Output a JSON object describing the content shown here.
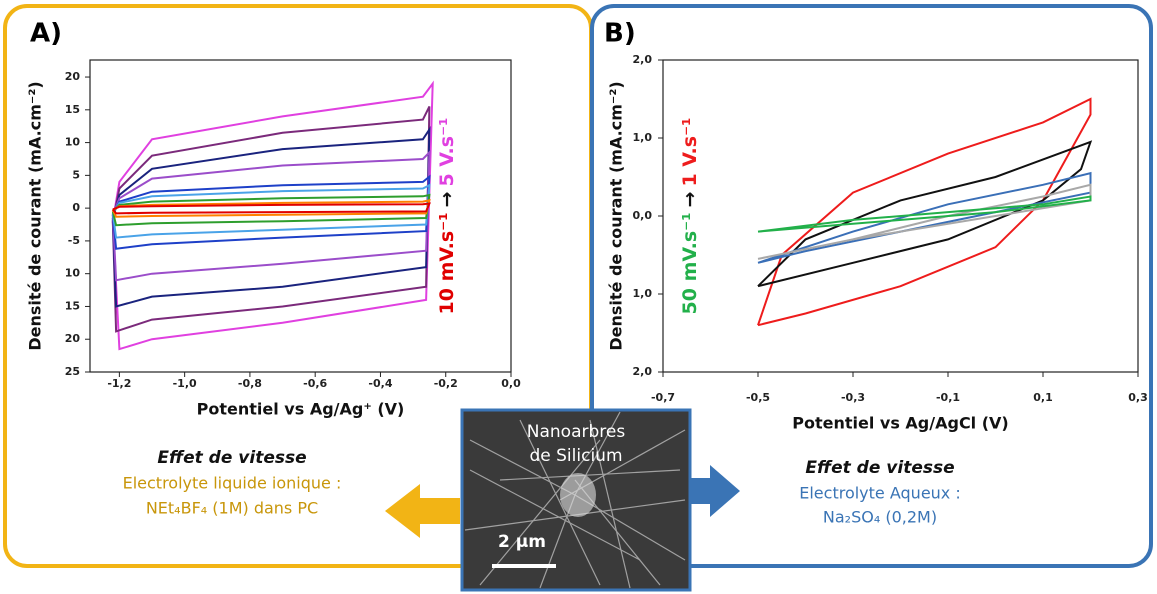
{
  "chart_data": [
    {
      "type": "line",
      "panel": "A)",
      "x_label": "Potentiel vs Ag/Ag⁺ (V)",
      "y_label": "Densité de courant (mA.cm⁻²)",
      "rate_from": "10 mV.s⁻¹",
      "rate_arrow": "→",
      "rate_to": "5 V.s⁻¹",
      "xlim": [
        -1.29,
        0
      ],
      "ylim": [
        -25,
        22.6
      ],
      "xticks": [
        {
          "value": -1.2,
          "label": "-1,2"
        },
        {
          "value": -1.0,
          "label": "-1,0"
        },
        {
          "value": -0.8,
          "label": "-0,8"
        },
        {
          "value": -0.6,
          "label": "-0,6"
        },
        {
          "value": -0.4,
          "label": "-0,4"
        },
        {
          "value": -0.2,
          "label": "-0,2"
        },
        {
          "value": 0,
          "label": "0,0"
        }
      ],
      "yticks": [
        20,
        15,
        10,
        5,
        0,
        -5,
        {
          "value": -10,
          "label": "10"
        },
        {
          "value": -15,
          "label": "15"
        },
        {
          "value": -20,
          "label": "20"
        },
        {
          "value": -25,
          "label": "25"
        }
      ],
      "series": [
        {
          "color": "#e040e0",
          "x": [
            -1.22,
            -1.2,
            -1.1,
            -0.7,
            -0.27,
            -0.24,
            -0.26,
            -0.7,
            -1.1,
            -1.2,
            -1.22
          ],
          "values": [
            -2,
            4,
            10.5,
            14,
            17,
            19,
            -14,
            -17.5,
            -20,
            -21.5,
            -2
          ]
        },
        {
          "color": "#7b2a7b",
          "x": [
            -1.22,
            -1.2,
            -1.1,
            -0.7,
            -0.27,
            -0.25,
            -0.26,
            -0.7,
            -1.1,
            -1.21,
            -1.22
          ],
          "values": [
            -2,
            3,
            8,
            11.5,
            13.5,
            15.5,
            -12,
            -15,
            -17,
            -18.8,
            -2
          ]
        },
        {
          "color": "#1a237e",
          "x": [
            -1.22,
            -1.2,
            -1.1,
            -0.7,
            -0.27,
            -0.25,
            -0.26,
            -0.7,
            -1.1,
            -1.21,
            -1.22
          ],
          "values": [
            -1.5,
            2,
            6,
            9,
            10.5,
            12,
            -9,
            -12,
            -13.5,
            -15,
            -1.5
          ]
        },
        {
          "color": "#9b4dca",
          "x": [
            -1.22,
            -1.2,
            -1.1,
            -0.7,
            -0.27,
            -0.25,
            -0.26,
            -0.7,
            -1.1,
            -1.21,
            -1.22
          ],
          "values": [
            -1,
            1.5,
            4.5,
            6.5,
            7.5,
            8.5,
            -6.5,
            -8.5,
            -10,
            -11,
            -1
          ]
        },
        {
          "color": "#1e40c8",
          "x": [
            -1.22,
            -1.2,
            -1.1,
            -0.7,
            -0.27,
            -0.25,
            -0.26,
            -0.7,
            -1.1,
            -1.21,
            -1.22
          ],
          "values": [
            -1,
            1,
            2.5,
            3.5,
            4,
            4.8,
            -3.5,
            -4.5,
            -5.5,
            -6.2,
            -1
          ]
        },
        {
          "color": "#4aa3e8",
          "x": [
            -1.22,
            -1.2,
            -1.1,
            -0.7,
            -0.27,
            -0.25,
            -0.26,
            -0.7,
            -1.1,
            -1.21,
            -1.22
          ],
          "values": [
            -0.8,
            0.8,
            1.8,
            2.6,
            3,
            3.5,
            -2.5,
            -3.3,
            -4,
            -4.5,
            -0.8
          ]
        },
        {
          "color": "#2e9e2e",
          "x": [
            -1.22,
            -1.2,
            -1.1,
            -0.7,
            -0.27,
            -0.25,
            -0.26,
            -0.7,
            -1.1,
            -1.21,
            -1.22
          ],
          "values": [
            -0.5,
            0.5,
            1,
            1.5,
            1.8,
            2,
            -1.5,
            -2,
            -2.3,
            -2.6,
            -0.5
          ]
        },
        {
          "color": "#ff8000",
          "x": [
            -1.22,
            -1.2,
            -1.1,
            -0.7,
            -0.27,
            -0.25,
            -0.26,
            -0.7,
            -1.1,
            -1.21,
            -1.22
          ],
          "values": [
            -0.3,
            0.3,
            0.5,
            0.8,
            1,
            1.2,
            -0.8,
            -1,
            -1.2,
            -1.3,
            -0.3
          ]
        },
        {
          "color": "#e00000",
          "x": [
            -1.22,
            -1.2,
            -1.1,
            -0.7,
            -0.27,
            -0.25,
            -0.26,
            -0.7,
            -1.1,
            -1.21,
            -1.22
          ],
          "values": [
            -0.2,
            0.2,
            0.3,
            0.5,
            0.6,
            0.7,
            -0.5,
            -0.6,
            -0.7,
            -0.8,
            -0.2
          ]
        }
      ]
    },
    {
      "type": "line",
      "panel": "B)",
      "x_label": "Potentiel vs Ag/AgCl (V)",
      "y_label": "Densité de courant (mA.cm⁻²)",
      "rate_from": "50 mV.s⁻¹",
      "rate_arrow": "→",
      "rate_to": "1 V.s⁻¹",
      "xlim": [
        -0.7,
        0.3
      ],
      "ylim": [
        -2,
        2
      ],
      "xticks": [
        {
          "value": -0.7,
          "label": "-0,7"
        },
        {
          "value": -0.5,
          "label": "-0,5"
        },
        {
          "value": -0.3,
          "label": "-0,3"
        },
        {
          "value": -0.1,
          "label": "-0,1"
        },
        {
          "value": 0.1,
          "label": "0,1"
        },
        {
          "value": 0.3,
          "label": "0,3"
        }
      ],
      "yticks": [
        {
          "value": 2,
          "label": "2,0"
        },
        {
          "value": 1,
          "label": "1,0"
        },
        {
          "value": 0,
          "label": "0,0"
        },
        {
          "value": -1,
          "label": "1,0"
        },
        {
          "value": -2,
          "label": "2,0"
        }
      ],
      "series": [
        {
          "color": "#ee1c1c",
          "x": [
            -0.5,
            -0.45,
            -0.3,
            -0.1,
            0.1,
            0.2,
            0.2,
            0.1,
            0,
            -0.2,
            -0.4,
            -0.5
          ],
          "values": [
            -1.4,
            -0.5,
            0.3,
            0.8,
            1.2,
            1.5,
            1.3,
            0.2,
            -0.4,
            -0.9,
            -1.25,
            -1.4
          ]
        },
        {
          "color": "#111111",
          "x": [
            -0.5,
            -0.4,
            -0.2,
            0,
            0.2,
            0.18,
            0.1,
            -0.1,
            -0.3,
            -0.5
          ],
          "values": [
            -0.9,
            -0.3,
            0.2,
            0.5,
            0.95,
            0.6,
            0.2,
            -0.3,
            -0.6,
            -0.9
          ]
        },
        {
          "color": "#3a6fb7",
          "x": [
            -0.5,
            -0.3,
            -0.1,
            0.1,
            0.2,
            0.2,
            0,
            -0.2,
            -0.4,
            -0.5
          ],
          "values": [
            -0.6,
            -0.2,
            0.15,
            0.4,
            0.55,
            0.3,
            0.05,
            -0.2,
            -0.45,
            -0.6
          ]
        },
        {
          "color": "#a8a8a8",
          "x": [
            -0.5,
            -0.3,
            -0.1,
            0.1,
            0.2,
            0.2,
            0,
            -0.3,
            -0.5
          ],
          "values": [
            -0.55,
            -0.3,
            0,
            0.25,
            0.4,
            0.2,
            0,
            -0.3,
            -0.55
          ]
        },
        {
          "color": "#22b04a",
          "x": [
            -0.5,
            -0.3,
            -0.1,
            0.1,
            0.2,
            0.2,
            0,
            -0.3,
            -0.5
          ],
          "values": [
            -0.2,
            -0.05,
            0.05,
            0.15,
            0.25,
            0.2,
            0.05,
            -0.1,
            -0.2
          ]
        }
      ]
    }
  ],
  "captions": [
    {
      "effect": "Effet de vitesse",
      "electrolyte": "Electrolyte liquide ionique :",
      "composition": "NEt₄BF₄ (1M) dans PC"
    },
    {
      "effect": "Effet de vitesse",
      "electrolyte": "Electrolyte Aqueux :",
      "composition": "Na₂SO₄ (0,2M)"
    }
  ],
  "image": {
    "title_line1": "Nanoarbres",
    "title_line2": "de Silicium",
    "scale": "2 µm"
  }
}
